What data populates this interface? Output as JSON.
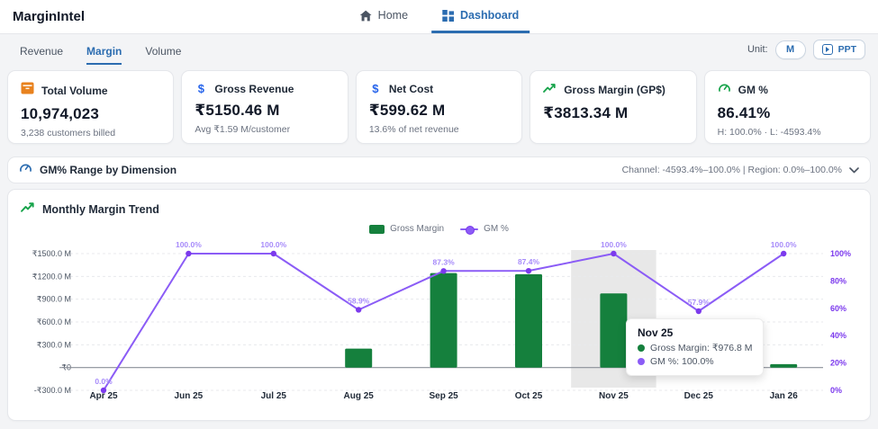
{
  "app": {
    "title": "MarginIntel"
  },
  "nav": {
    "home": "Home",
    "dashboard": "Dashboard"
  },
  "tabs": [
    {
      "label": "Revenue",
      "active": false
    },
    {
      "label": "Margin",
      "active": true
    },
    {
      "label": "Volume",
      "active": false
    }
  ],
  "unit": {
    "label": "Unit:",
    "m_button": "M",
    "ppt_button": "PPT"
  },
  "kpi_cards": [
    {
      "icon": "volume-box-icon",
      "title": "Total Volume",
      "value": "10,974,023",
      "sub": "3,238 customers billed"
    },
    {
      "icon": "dollar-icon",
      "title": "Gross Revenue",
      "value": "₹5150.46 M",
      "sub": "Avg ₹1.59 M/customer"
    },
    {
      "icon": "dollar-icon",
      "title": "Net Cost",
      "value": "₹599.62 M",
      "sub": "13.6% of net revenue"
    },
    {
      "icon": "trend-up-icon",
      "title": "Gross Margin (GP$)",
      "value": "₹3813.34 M",
      "sub": ""
    },
    {
      "icon": "gauge-icon",
      "title": "GM %",
      "value": "86.41%",
      "sub": "H: 100.0% · L: -4593.4%"
    }
  ],
  "dimension_bar": {
    "title": "GM% Range by Dimension",
    "summary": "Channel: -4593.4%–100.0% | Region: 0.0%–100.0%"
  },
  "chart": {
    "title": "Monthly Margin Trend",
    "legend": [
      "Gross Margin",
      "GM %"
    ]
  },
  "tooltip": {
    "title": "Nov 25",
    "rows": [
      {
        "label": "Gross Margin: ₹976.8 M",
        "color": "#15803d"
      },
      {
        "label": "GM %: 100.0%",
        "color": "#8b5cf6"
      }
    ]
  },
  "colors": {
    "accent_blue": "#2b6cb0",
    "bar_green": "#15803d",
    "line_purple": "#8b5cf6",
    "point_purple": "#7c3aed",
    "orange": "#e8821e",
    "highlight_band": "#e2e2e2"
  },
  "chart_data": {
    "type": "bar+line",
    "title": "Monthly Margin Trend",
    "categories": [
      "Apr 25",
      "Jun 25",
      "Jul 25",
      "Aug 25",
      "Sep 25",
      "Oct 25",
      "Nov 25",
      "Dec 25",
      "Jan 26"
    ],
    "series": [
      {
        "name": "Gross Margin",
        "type": "bar",
        "axis": "left",
        "unit": "₹ M",
        "color": "#15803d",
        "values": [
          0,
          0,
          0,
          250,
          1245,
          1230,
          976.8,
          0,
          45
        ]
      },
      {
        "name": "GM %",
        "type": "line",
        "axis": "right",
        "unit": "%",
        "color": "#8b5cf6",
        "values": [
          0.0,
          100.0,
          100.0,
          58.9,
          87.3,
          87.4,
          100.0,
          57.9,
          100.0
        ],
        "point_labels": [
          "0.0%",
          "100.0%",
          "100.0%",
          "58.9%",
          "87.3%",
          "87.4%",
          "100.0%",
          "57.9%",
          "100.0%"
        ]
      }
    ],
    "left_axis": {
      "ticks": [
        "₹1500.0 M",
        "₹1200.0 M",
        "₹900.0 M",
        "₹600.0 M",
        "₹300.0 M",
        "₹0",
        "-₹300.0 M"
      ],
      "min": -300,
      "max": 1500
    },
    "right_axis": {
      "ticks": [
        "100%",
        "80%",
        "60%",
        "40%",
        "20%",
        "0%"
      ],
      "min": 0,
      "max": 100
    },
    "grid": "dashed-horizontal",
    "legend_position": "top-center",
    "highlighted_category": "Nov 25"
  }
}
